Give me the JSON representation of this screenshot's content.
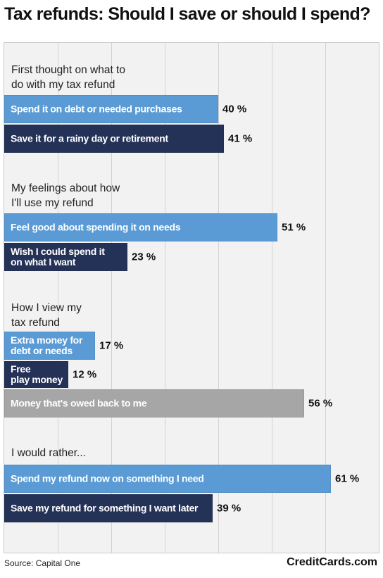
{
  "header": {
    "title": "Tax refunds: Should I save or should I spend?"
  },
  "footer": {
    "source": "Source: Capital One",
    "brand": "CreditCards.com"
  },
  "colors": {
    "light_blue": "#5b9bd5",
    "navy": "#253258",
    "gray": "#a6a6a6",
    "background": "#f2f2f2"
  },
  "chart_data": {
    "type": "bar",
    "orientation": "horizontal",
    "title": "Tax refunds: Should I save or should I spend?",
    "xlim": [
      0,
      70
    ],
    "grid": true,
    "legend": "none",
    "groups": [
      {
        "label": "First thought on what to\ndo with my tax refund",
        "bars": [
          {
            "label": "Spend it on debt or needed purchases",
            "value": 40,
            "display": "40 %",
            "color": "light_blue"
          },
          {
            "label": "Save it for a rainy day or retirement",
            "value": 41,
            "display": "41 %",
            "color": "navy"
          }
        ]
      },
      {
        "label": "My feelings about how\nI'll use my refund",
        "bars": [
          {
            "label": "Feel good about spending it on needs",
            "value": 51,
            "display": "51 %",
            "color": "light_blue"
          },
          {
            "label": "Wish I could spend it\non what I want",
            "value": 23,
            "display": "23 %",
            "color": "navy"
          }
        ]
      },
      {
        "label": "How I view my\ntax refund",
        "bars": [
          {
            "label": "Extra money for\ndebt or needs",
            "value": 17,
            "display": "17 %",
            "color": "light_blue"
          },
          {
            "label": "Free\nplay money",
            "value": 12,
            "display": "12 %",
            "color": "navy"
          },
          {
            "label": "Money that's owed back to me",
            "value": 56,
            "display": "56 %",
            "color": "gray"
          }
        ]
      },
      {
        "label": "I would rather...",
        "bars": [
          {
            "label": "Spend my refund now on something I need",
            "value": 61,
            "display": "61 %",
            "color": "light_blue"
          },
          {
            "label": "Save my refund for something I want later",
            "value": 39,
            "display": "39 %",
            "color": "navy"
          }
        ]
      }
    ]
  }
}
